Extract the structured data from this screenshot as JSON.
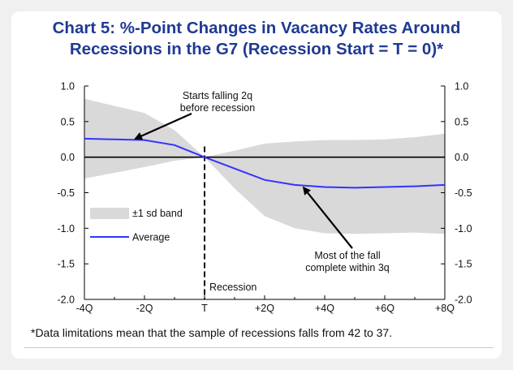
{
  "title_line1": "Chart 5: %-Point Changes in Vacancy Rates Around",
  "title_line2": "Recessions in the G7 (Recession Start = T = 0)*",
  "footnote": "*Data limitations mean that the sample of recessions falls from 42 to 37.",
  "colors": {
    "title": "#1f3a93",
    "average_line": "#3333ff",
    "band": "#d9d9d9"
  },
  "chart_data": {
    "type": "line",
    "xlim": [
      -4,
      8
    ],
    "ylim": [
      -2.0,
      1.0
    ],
    "x_ticks": [
      {
        "x": -4,
        "label": "-4Q"
      },
      {
        "x": -2,
        "label": "-2Q"
      },
      {
        "x": 0,
        "label": "T"
      },
      {
        "x": 2,
        "label": "+2Q"
      },
      {
        "x": 4,
        "label": "+4Q"
      },
      {
        "x": 6,
        "label": "+6Q"
      },
      {
        "x": 8,
        "label": "+8Q"
      }
    ],
    "y_ticks": [
      1.0,
      0.5,
      0.0,
      -0.5,
      -1.0,
      -1.5,
      -2.0
    ],
    "y_tick_labels": [
      "1.0",
      "0.5",
      "0.0",
      "-0.5",
      "-1.0",
      "-1.5",
      "-2.0"
    ],
    "x": [
      -4,
      -3,
      -2,
      -1,
      0,
      1,
      2,
      3,
      4,
      5,
      6,
      7,
      8
    ],
    "series": [
      {
        "name": "Average",
        "values": [
          0.26,
          0.25,
          0.24,
          0.17,
          0.0,
          -0.16,
          -0.32,
          -0.39,
          -0.42,
          -0.43,
          -0.42,
          -0.41,
          -0.39
        ]
      },
      {
        "name": "±1 sd band",
        "upper": [
          0.82,
          0.72,
          0.62,
          0.38,
          0.0,
          0.09,
          0.19,
          0.22,
          0.24,
          0.24,
          0.25,
          0.28,
          0.33
        ],
        "lower": [
          -0.3,
          -0.22,
          -0.14,
          -0.05,
          0.0,
          -0.44,
          -0.83,
          -1.0,
          -1.07,
          -1.08,
          -1.07,
          -1.06,
          -1.08
        ]
      }
    ],
    "recession_marker": {
      "x": 0,
      "label": "Recession"
    },
    "legend": {
      "placement": "left",
      "band_label": "±1 sd band",
      "line_label": "Average"
    },
    "annotations": [
      {
        "lines": [
          "Starts falling 2q",
          "before recession"
        ],
        "points_to": {
          "x": -2.3,
          "y": 0.26
        }
      },
      {
        "lines": [
          "Most of the fall",
          "complete within 3q"
        ],
        "points_to": {
          "x": 3.3,
          "y": -0.43
        }
      }
    ]
  }
}
